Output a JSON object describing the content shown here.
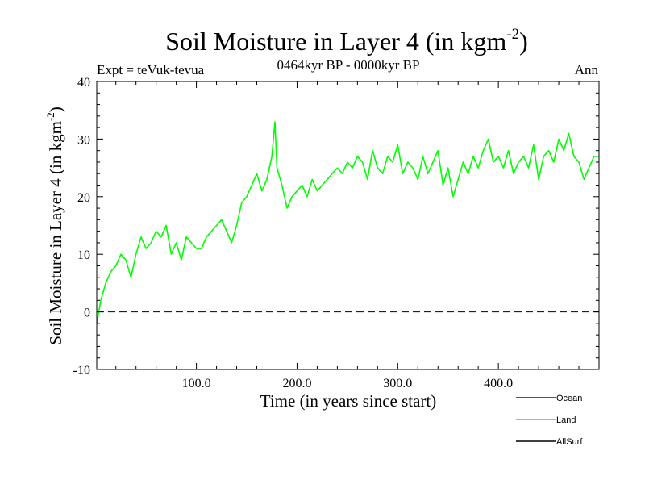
{
  "header": {
    "title_main": "Soil Moisture in Layer 4 (in kgm",
    "title_exp": "-2",
    "title_close": ")",
    "expt": "Expt = teVuk-tevua",
    "period": "0464kyr BP - 0000kyr BP",
    "season": "Ann"
  },
  "colors": {
    "land": "#00ff00",
    "ocean": "#0000ff",
    "allsurf": "#000000",
    "axis": "#000000"
  },
  "chart_data": {
    "type": "line",
    "xlabel": "Time (in years since start)",
    "ylabel_main": "Soil Moisture in Layer 4 (in kgm",
    "ylabel_exp": "-2",
    "ylabel_close": ")",
    "xlim": [
      1,
      500
    ],
    "ylim": [
      -10,
      40
    ],
    "x_ticks": [
      100,
      200,
      300,
      400
    ],
    "x_tick_labels": [
      "100.0",
      "200.0",
      "300.0",
      "400.0"
    ],
    "y_ticks": [
      -10,
      0,
      10,
      20,
      30,
      40
    ],
    "y_tick_labels": [
      "-10",
      "0",
      "10",
      "20",
      "30",
      "40"
    ],
    "reference_line": 0,
    "legend_position": "bottom-right",
    "legend": [
      {
        "name": "Ocean",
        "color": "#0000ff"
      },
      {
        "name": "Land",
        "color": "#00ff00"
      },
      {
        "name": "AllSurf",
        "color": "#000000"
      }
    ],
    "series": [
      {
        "name": "Land",
        "color": "#00ff00",
        "x": [
          1,
          5,
          10,
          15,
          20,
          25,
          30,
          35,
          40,
          45,
          50,
          55,
          60,
          65,
          70,
          75,
          80,
          85,
          90,
          95,
          100,
          105,
          110,
          115,
          120,
          125,
          130,
          135,
          140,
          145,
          150,
          155,
          160,
          165,
          170,
          175,
          178,
          180,
          185,
          190,
          195,
          200,
          205,
          210,
          215,
          220,
          225,
          230,
          235,
          240,
          245,
          250,
          255,
          260,
          265,
          270,
          275,
          280,
          285,
          290,
          295,
          300,
          305,
          310,
          315,
          320,
          325,
          330,
          335,
          340,
          345,
          350,
          355,
          360,
          365,
          370,
          375,
          380,
          385,
          390,
          395,
          400,
          405,
          410,
          415,
          420,
          425,
          430,
          435,
          440,
          445,
          450,
          455,
          460,
          465,
          470,
          475,
          480,
          485,
          490,
          495,
          500
        ],
        "y": [
          -2,
          2,
          5,
          7,
          8,
          10,
          9,
          6,
          10,
          13,
          11,
          12,
          14,
          13,
          15,
          10,
          12,
          9,
          13,
          12,
          11,
          11,
          13,
          14,
          15,
          16,
          14,
          12,
          15,
          19,
          20,
          22,
          24,
          21,
          23,
          27,
          33,
          25,
          22,
          18,
          20,
          21,
          22,
          20,
          23,
          21,
          22,
          23,
          24,
          25,
          24,
          26,
          25,
          27,
          26,
          23,
          28,
          25,
          24,
          27,
          26,
          29,
          24,
          26,
          25,
          23,
          27,
          24,
          26,
          28,
          22,
          25,
          20,
          23,
          26,
          24,
          27,
          25,
          28,
          30,
          26,
          27,
          25,
          28,
          24,
          26,
          27,
          25,
          29,
          23,
          27,
          28,
          26,
          30,
          28,
          31,
          27,
          26,
          23,
          25,
          27,
          27
        ]
      }
    ]
  }
}
